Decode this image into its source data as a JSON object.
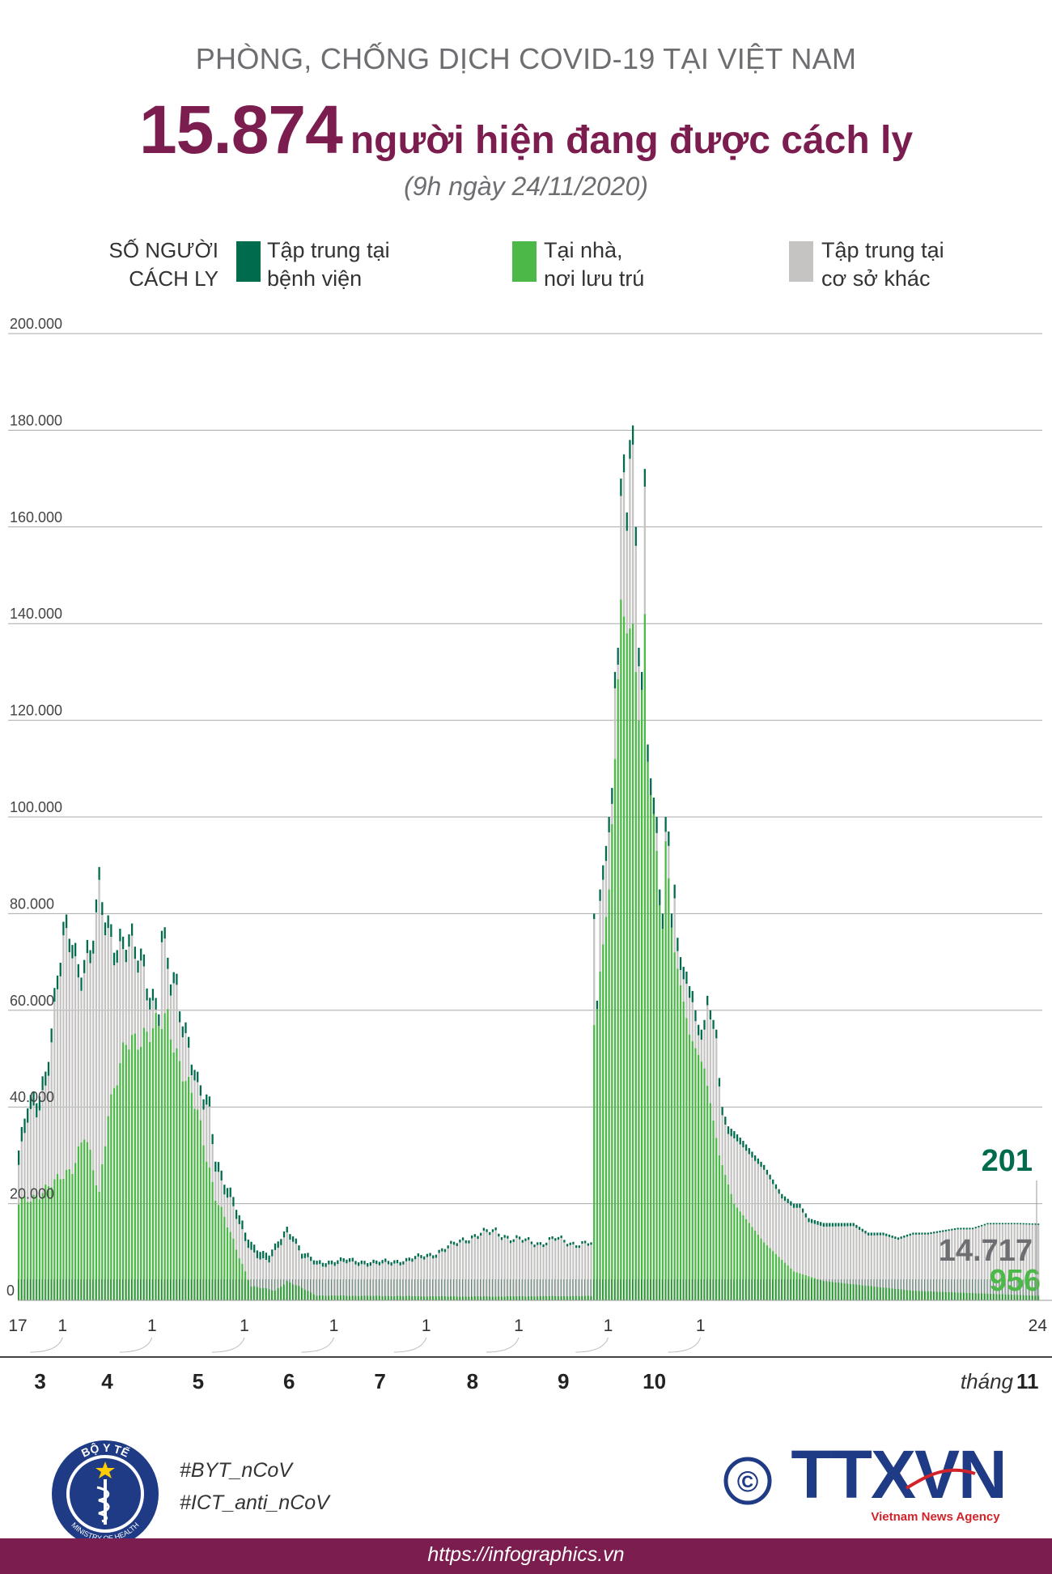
{
  "header": {
    "kicker": "PHÒNG, CHỐNG DỊCH COVID-19 TẠI VIỆT NAM",
    "headline_number": "15.874",
    "headline_text": "người hiện đang được cách ly",
    "timestamp": "(9h ngày 24/11/2020)"
  },
  "legend": {
    "ylabel_line1": "SỐ NGƯỜI",
    "ylabel_line2": "CÁCH LY",
    "items": [
      {
        "line1": "Tập trung tại",
        "line2": "bệnh viện",
        "color": "#006b4d"
      },
      {
        "line1": "Tại nhà,",
        "line2": "nơi lưu trú",
        "color": "#4cb848"
      },
      {
        "line1": "Tập trung tại",
        "line2": "cơ sở khác",
        "color": "#c5c4c3"
      }
    ]
  },
  "chart_data": {
    "type": "bar",
    "stacked": true,
    "title": "Số người cách ly",
    "ylabel": "SỐ NGƯỜI CÁCH LY",
    "ylim": [
      0,
      200000
    ],
    "yticks": [
      "0",
      "20.000",
      "40.000",
      "60.000",
      "80.000",
      "100.000",
      "120.000",
      "140.000",
      "160.000",
      "180.000",
      "200.000"
    ],
    "x_range": [
      "17/3",
      "24/11"
    ],
    "series_names": [
      "Tập trung tại bệnh viện",
      "Tại nhà, nơi lưu trú",
      "Tập trung tại cơ sở khác"
    ],
    "colors": [
      "#006b4d",
      "#4cb848",
      "#c5c4c3"
    ],
    "totals_profile": [
      [
        0,
        31000
      ],
      [
        3,
        40000
      ],
      [
        6,
        42000
      ],
      [
        9,
        48000
      ],
      [
        12,
        62000
      ],
      [
        15,
        75000
      ],
      [
        18,
        76000
      ],
      [
        20,
        70000
      ],
      [
        22,
        73000
      ],
      [
        24,
        72000
      ],
      [
        27,
        84000
      ],
      [
        30,
        78000
      ],
      [
        33,
        76000
      ],
      [
        36,
        75000
      ],
      [
        39,
        72000
      ],
      [
        42,
        70000
      ],
      [
        45,
        64000
      ],
      [
        47,
        62000
      ],
      [
        48,
        76000
      ],
      [
        51,
        66000
      ],
      [
        53,
        65000
      ],
      [
        54,
        62000
      ],
      [
        57,
        55000
      ],
      [
        60,
        45000
      ],
      [
        62,
        42000
      ],
      [
        64,
        40000
      ],
      [
        66,
        30000
      ],
      [
        68,
        27000
      ],
      [
        70,
        24000
      ],
      [
        72,
        21000
      ],
      [
        74,
        17000
      ],
      [
        76,
        14000
      ],
      [
        78,
        12000
      ],
      [
        80,
        11000
      ],
      [
        82,
        10000
      ],
      [
        84,
        9500
      ],
      [
        86,
        11000
      ],
      [
        88,
        13000
      ],
      [
        90,
        15000
      ],
      [
        92,
        14000
      ],
      [
        95,
        10000
      ],
      [
        100,
        8000
      ],
      [
        110,
        8500
      ],
      [
        120,
        8000
      ],
      [
        130,
        8500
      ],
      [
        140,
        10000
      ],
      [
        150,
        13000
      ],
      [
        155,
        14000
      ],
      [
        160,
        14500
      ],
      [
        165,
        13000
      ],
      [
        170,
        12500
      ],
      [
        175,
        12000
      ],
      [
        180,
        13000
      ],
      [
        185,
        12000
      ],
      [
        190,
        12000
      ],
      [
        192,
        12000
      ],
      [
        193,
        80000
      ],
      [
        194,
        62000
      ],
      [
        195,
        85000
      ],
      [
        196,
        90000
      ],
      [
        197,
        94000
      ],
      [
        198,
        100000
      ],
      [
        199,
        106000
      ],
      [
        200,
        130000
      ],
      [
        201,
        135000
      ],
      [
        202,
        170000
      ],
      [
        203,
        175000
      ],
      [
        204,
        163000
      ],
      [
        205,
        178000
      ],
      [
        206,
        181000
      ],
      [
        207,
        160000
      ],
      [
        208,
        135000
      ],
      [
        209,
        130000
      ],
      [
        210,
        172000
      ],
      [
        211,
        115000
      ],
      [
        212,
        108000
      ],
      [
        213,
        104000
      ],
      [
        214,
        100000
      ],
      [
        215,
        85000
      ],
      [
        216,
        80000
      ],
      [
        217,
        100000
      ],
      [
        218,
        97000
      ],
      [
        219,
        80000
      ],
      [
        220,
        86000
      ],
      [
        221,
        75000
      ],
      [
        222,
        71000
      ],
      [
        223,
        69000
      ],
      [
        224,
        68000
      ],
      [
        225,
        65000
      ],
      [
        226,
        64000
      ],
      [
        227,
        60000
      ],
      [
        228,
        57000
      ],
      [
        229,
        56000
      ],
      [
        230,
        58000
      ],
      [
        231,
        63000
      ],
      [
        232,
        60000
      ],
      [
        233,
        58000
      ],
      [
        234,
        56000
      ],
      [
        235,
        46000
      ],
      [
        236,
        40000
      ],
      [
        237,
        38000
      ],
      [
        238,
        36000
      ],
      [
        240,
        35000
      ],
      [
        243,
        33000
      ],
      [
        247,
        30000
      ],
      [
        250,
        28000
      ],
      [
        253,
        25000
      ],
      [
        256,
        22000
      ],
      [
        260,
        20000
      ],
      [
        262,
        20000
      ],
      [
        265,
        17000
      ],
      [
        270,
        16000
      ],
      [
        275,
        16000
      ],
      [
        280,
        16000
      ],
      [
        285,
        14000
      ],
      [
        290,
        14000
      ],
      [
        295,
        13000
      ],
      [
        300,
        14000
      ],
      [
        305,
        14000
      ],
      [
        310,
        14500
      ],
      [
        315,
        15000
      ],
      [
        320,
        15000
      ],
      [
        325,
        16000
      ],
      [
        330,
        16000
      ],
      [
        335,
        16000
      ],
      [
        342,
        15874
      ]
    ],
    "hospital_profile": [
      [
        0,
        3000
      ],
      [
        40,
        2500
      ],
      [
        70,
        2000
      ],
      [
        100,
        800
      ],
      [
        150,
        600
      ],
      [
        192,
        500
      ],
      [
        196,
        3000
      ],
      [
        206,
        4000
      ],
      [
        212,
        3500
      ],
      [
        230,
        2000
      ],
      [
        250,
        1000
      ],
      [
        300,
        400
      ],
      [
        342,
        201
      ]
    ],
    "home_profile": [
      [
        0,
        20000
      ],
      [
        6,
        22000
      ],
      [
        12,
        24000
      ],
      [
        18,
        28000
      ],
      [
        22,
        34000
      ],
      [
        27,
        22000
      ],
      [
        30,
        40000
      ],
      [
        36,
        52000
      ],
      [
        42,
        56000
      ],
      [
        47,
        56000
      ],
      [
        50,
        58000
      ],
      [
        54,
        50000
      ],
      [
        60,
        38000
      ],
      [
        66,
        22000
      ],
      [
        72,
        12000
      ],
      [
        78,
        3000
      ],
      [
        86,
        2000
      ],
      [
        90,
        4000
      ],
      [
        100,
        1000
      ],
      [
        150,
        800
      ],
      [
        192,
        900
      ],
      [
        193,
        57000
      ],
      [
        195,
        68000
      ],
      [
        198,
        85000
      ],
      [
        200,
        112000
      ],
      [
        202,
        145000
      ],
      [
        204,
        138000
      ],
      [
        206,
        140000
      ],
      [
        208,
        120000
      ],
      [
        210,
        142000
      ],
      [
        214,
        93000
      ],
      [
        217,
        95000
      ],
      [
        220,
        72000
      ],
      [
        225,
        55000
      ],
      [
        230,
        48000
      ],
      [
        235,
        30000
      ],
      [
        240,
        20000
      ],
      [
        250,
        12000
      ],
      [
        260,
        6000
      ],
      [
        270,
        4000
      ],
      [
        300,
        2000
      ],
      [
        342,
        956
      ]
    ],
    "latest": {
      "date": "24/11",
      "hospital": "201",
      "home": "956",
      "other": "14.717",
      "total": "15.874"
    }
  },
  "xaxis": {
    "day_labels": [
      "17",
      "1",
      "1",
      "1",
      "1",
      "1",
      "1",
      "1",
      "1",
      "24"
    ],
    "months": [
      "3",
      "4",
      "5",
      "6",
      "7",
      "8",
      "9",
      "10",
      "11"
    ],
    "month_word": "tháng"
  },
  "footer": {
    "moh_top": "BỘ Y TẾ",
    "moh_bottom": "MINISTRY OF HEALTH",
    "hashtags": [
      "#BYT_nCoV",
      "#ICT_anti_nCoV"
    ],
    "copyright_symbol": "©",
    "agency_logo": "TTXVN",
    "agency_tagline": "Vietnam News Agency",
    "url": "https://infographics.vn"
  }
}
